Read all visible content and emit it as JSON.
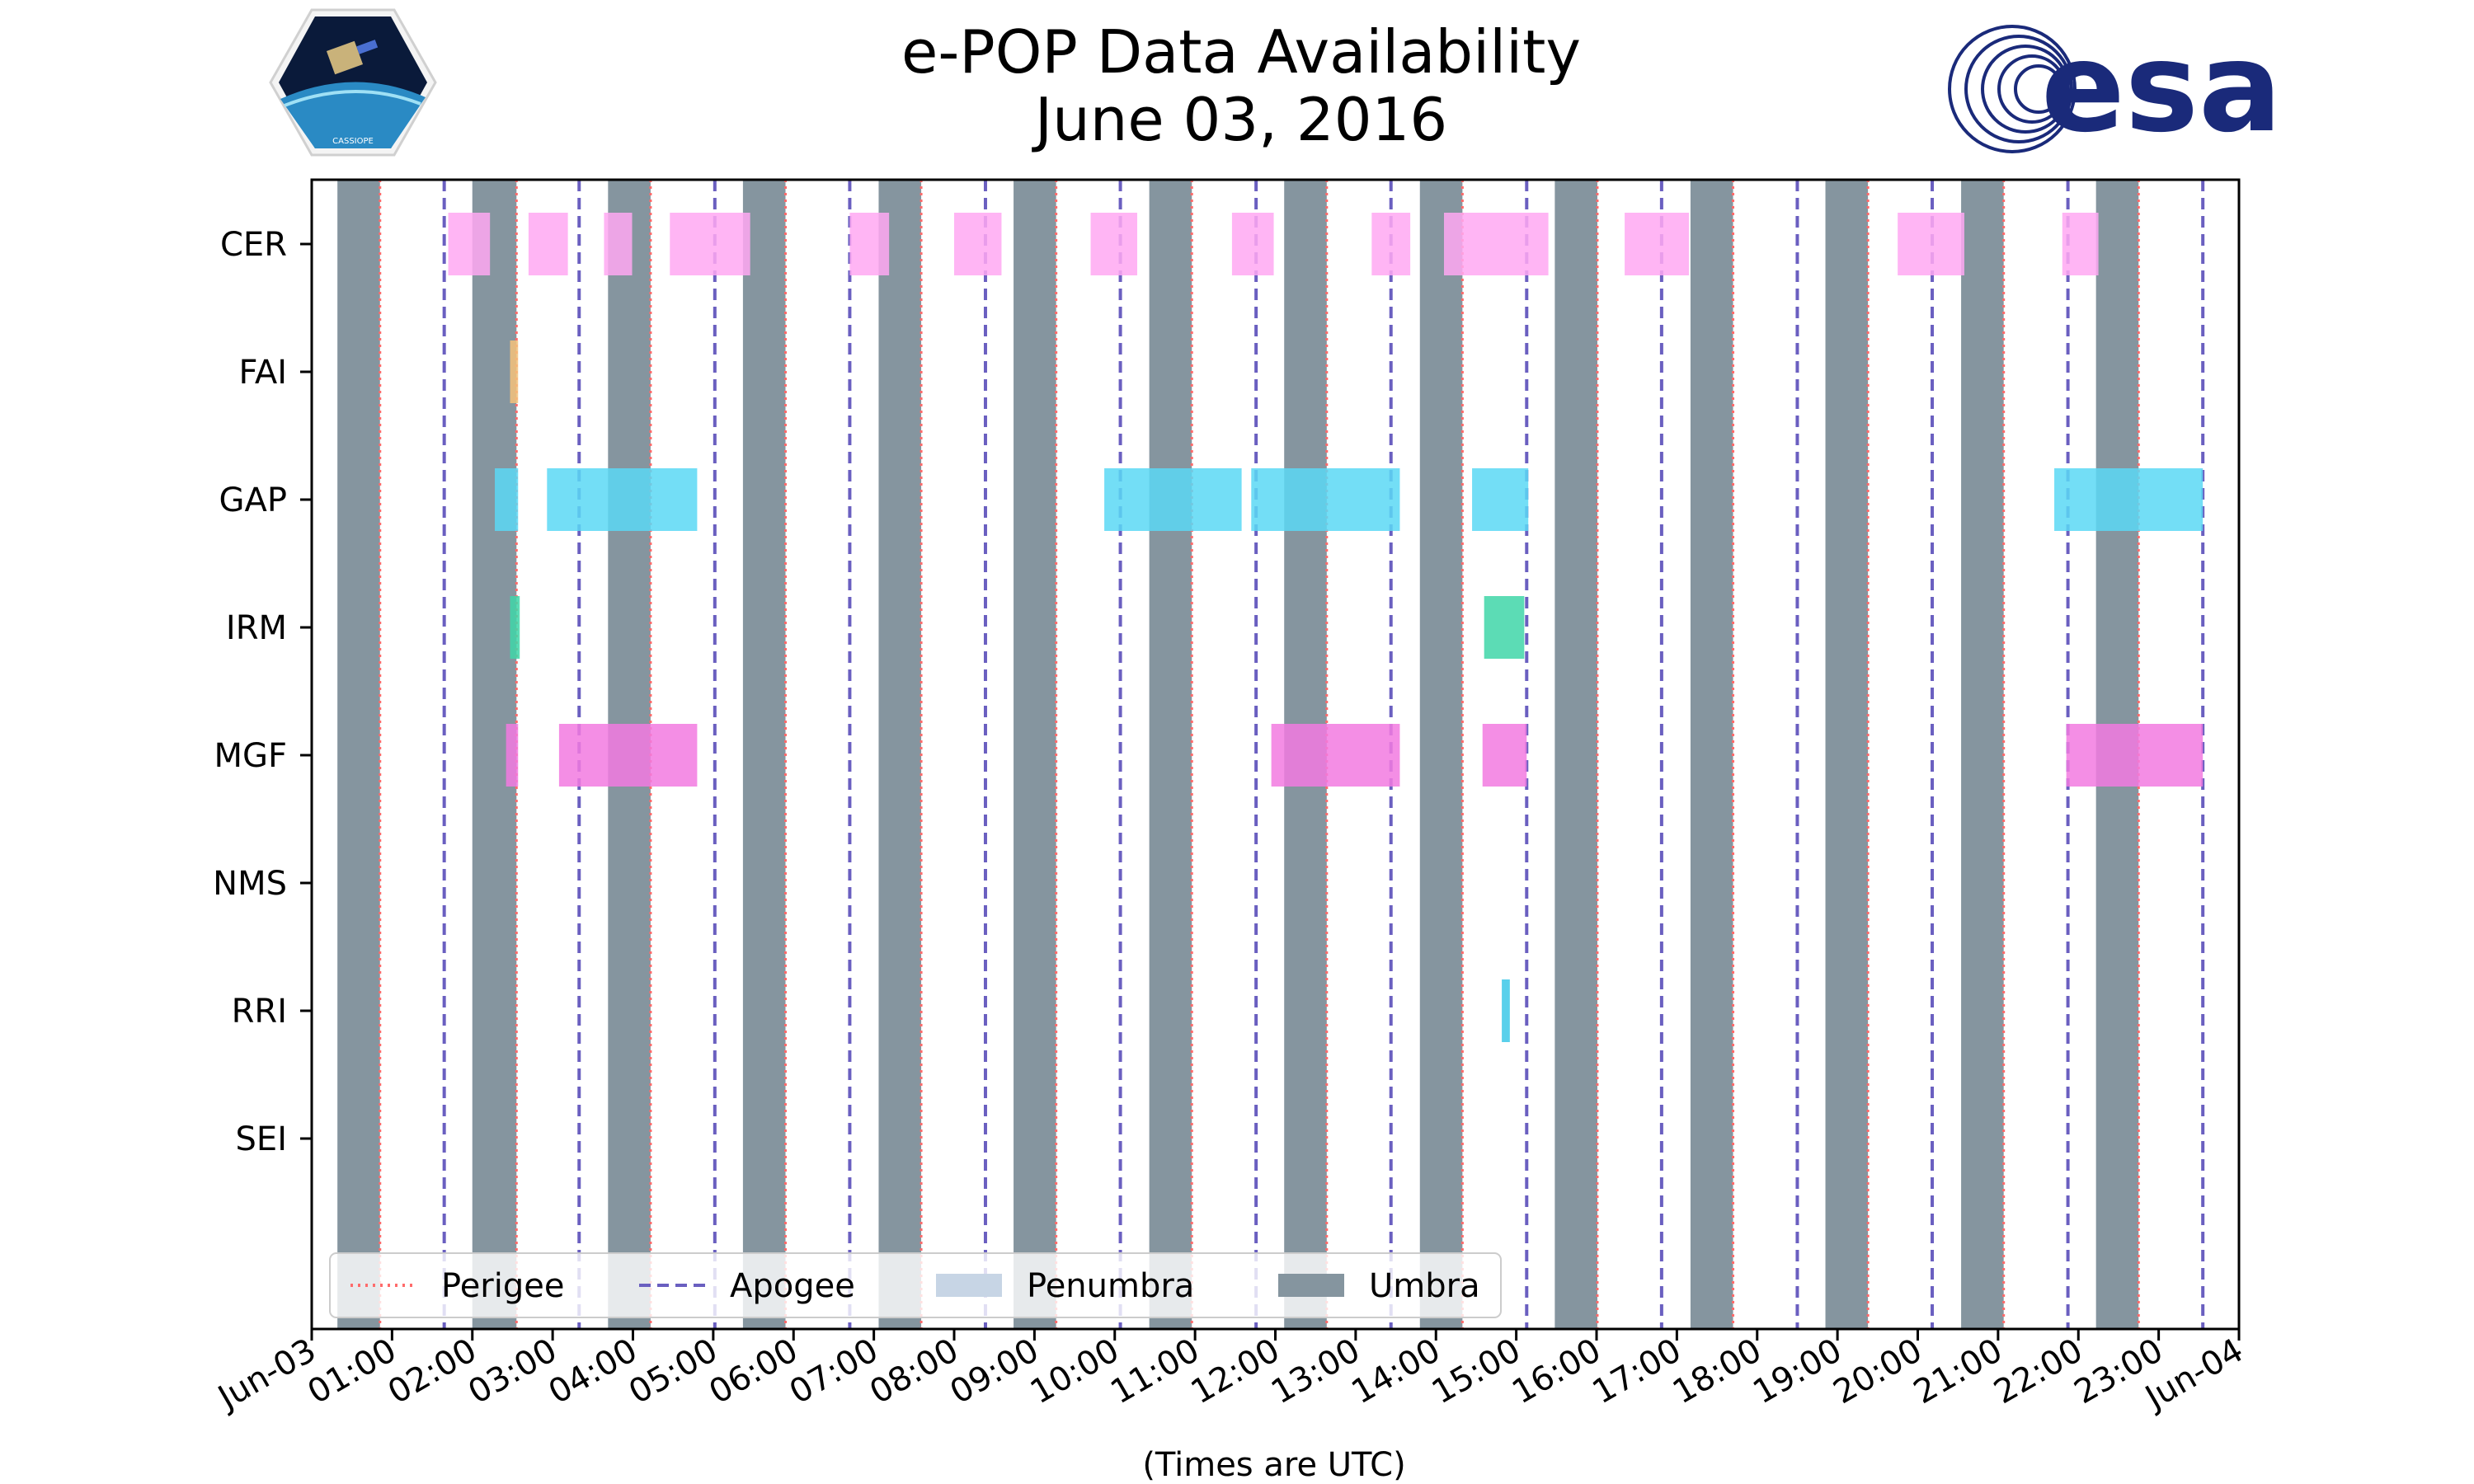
{
  "chart_data": {
    "type": "timeline",
    "title": "e-POP Data Availability",
    "subtitle": "June 03, 2016",
    "xlabel": "(Times are UTC)",
    "xlim_hours": [
      0,
      24
    ],
    "x_ticks": [
      "Jun-03",
      "01:00",
      "02:00",
      "03:00",
      "04:00",
      "05:00",
      "06:00",
      "07:00",
      "08:00",
      "09:00",
      "10:00",
      "11:00",
      "12:00",
      "13:00",
      "14:00",
      "15:00",
      "16:00",
      "17:00",
      "18:00",
      "19:00",
      "20:00",
      "21:00",
      "22:00",
      "23:00",
      "Jun-04"
    ],
    "instruments": [
      "CER",
      "FAI",
      "GAP",
      "IRM",
      "MGF",
      "NMS",
      "RRI",
      "SEI"
    ],
    "instrument_colors": {
      "CER": "#ffa8f2",
      "FAI": "#f5c27a",
      "GAP": "#5ad8f5",
      "IRM": "#3fd6a8",
      "MGF": "#f27ae0",
      "NMS": "#cccccc",
      "RRI": "#3cc8e8",
      "SEI": "#cccccc"
    },
    "umbra_color": "#85959f",
    "perigee_color": "#ff6b6b",
    "apogee_color": "#6a5fc0",
    "umbra": [
      [
        0.32,
        0.85
      ],
      [
        2.0,
        2.55
      ],
      [
        3.69,
        4.22
      ],
      [
        5.37,
        5.9
      ],
      [
        7.06,
        7.59
      ],
      [
        8.74,
        9.27
      ],
      [
        10.43,
        10.96
      ],
      [
        12.11,
        12.64
      ],
      [
        13.8,
        14.33
      ],
      [
        15.48,
        16.01
      ],
      [
        17.17,
        17.7
      ],
      [
        18.85,
        19.38
      ],
      [
        20.54,
        21.07
      ],
      [
        22.22,
        22.75
      ]
    ],
    "perigee": [
      0.85,
      2.55,
      4.22,
      5.9,
      7.59,
      9.27,
      10.96,
      12.64,
      14.33,
      16.01,
      17.7,
      19.38,
      21.07,
      22.75
    ],
    "apogee": [
      1.65,
      3.33,
      5.02,
      6.7,
      8.39,
      10.07,
      11.76,
      13.44,
      15.13,
      16.81,
      18.5,
      20.18,
      21.87,
      23.55
    ],
    "intervals": {
      "CER": [
        [
          1.7,
          2.22
        ],
        [
          2.7,
          3.19
        ],
        [
          3.64,
          3.99
        ],
        [
          4.46,
          5.46
        ],
        [
          6.7,
          7.19
        ],
        [
          8.0,
          8.59
        ],
        [
          9.7,
          10.28
        ],
        [
          11.46,
          11.98
        ],
        [
          13.2,
          13.68
        ],
        [
          14.1,
          15.4
        ],
        [
          16.35,
          17.15
        ],
        [
          19.75,
          20.58
        ],
        [
          21.8,
          22.25
        ]
      ],
      "FAI": [
        [
          2.47,
          2.57
        ]
      ],
      "GAP": [
        [
          2.28,
          2.57
        ],
        [
          2.93,
          4.8
        ],
        [
          9.87,
          11.58
        ],
        [
          11.7,
          13.55
        ],
        [
          14.45,
          15.15
        ],
        [
          21.7,
          23.55
        ]
      ],
      "IRM": [
        [
          2.47,
          2.59
        ],
        [
          14.6,
          15.1
        ]
      ],
      "MGF": [
        [
          2.42,
          2.57
        ],
        [
          3.08,
          4.8
        ],
        [
          11.95,
          13.55
        ],
        [
          14.58,
          15.13
        ],
        [
          21.85,
          23.55
        ]
      ],
      "NMS": [],
      "RRI": [
        [
          14.82,
          14.92
        ]
      ],
      "SEI": []
    },
    "legend": {
      "position": "lower-left",
      "entries": [
        "Perigee",
        "Apogee",
        "Penumbra",
        "Umbra"
      ],
      "penumbra_color": "#c7d5e5"
    }
  },
  "logos": {
    "cassiope_label": "CASSIOPE",
    "esa_wordmark": "esa"
  }
}
